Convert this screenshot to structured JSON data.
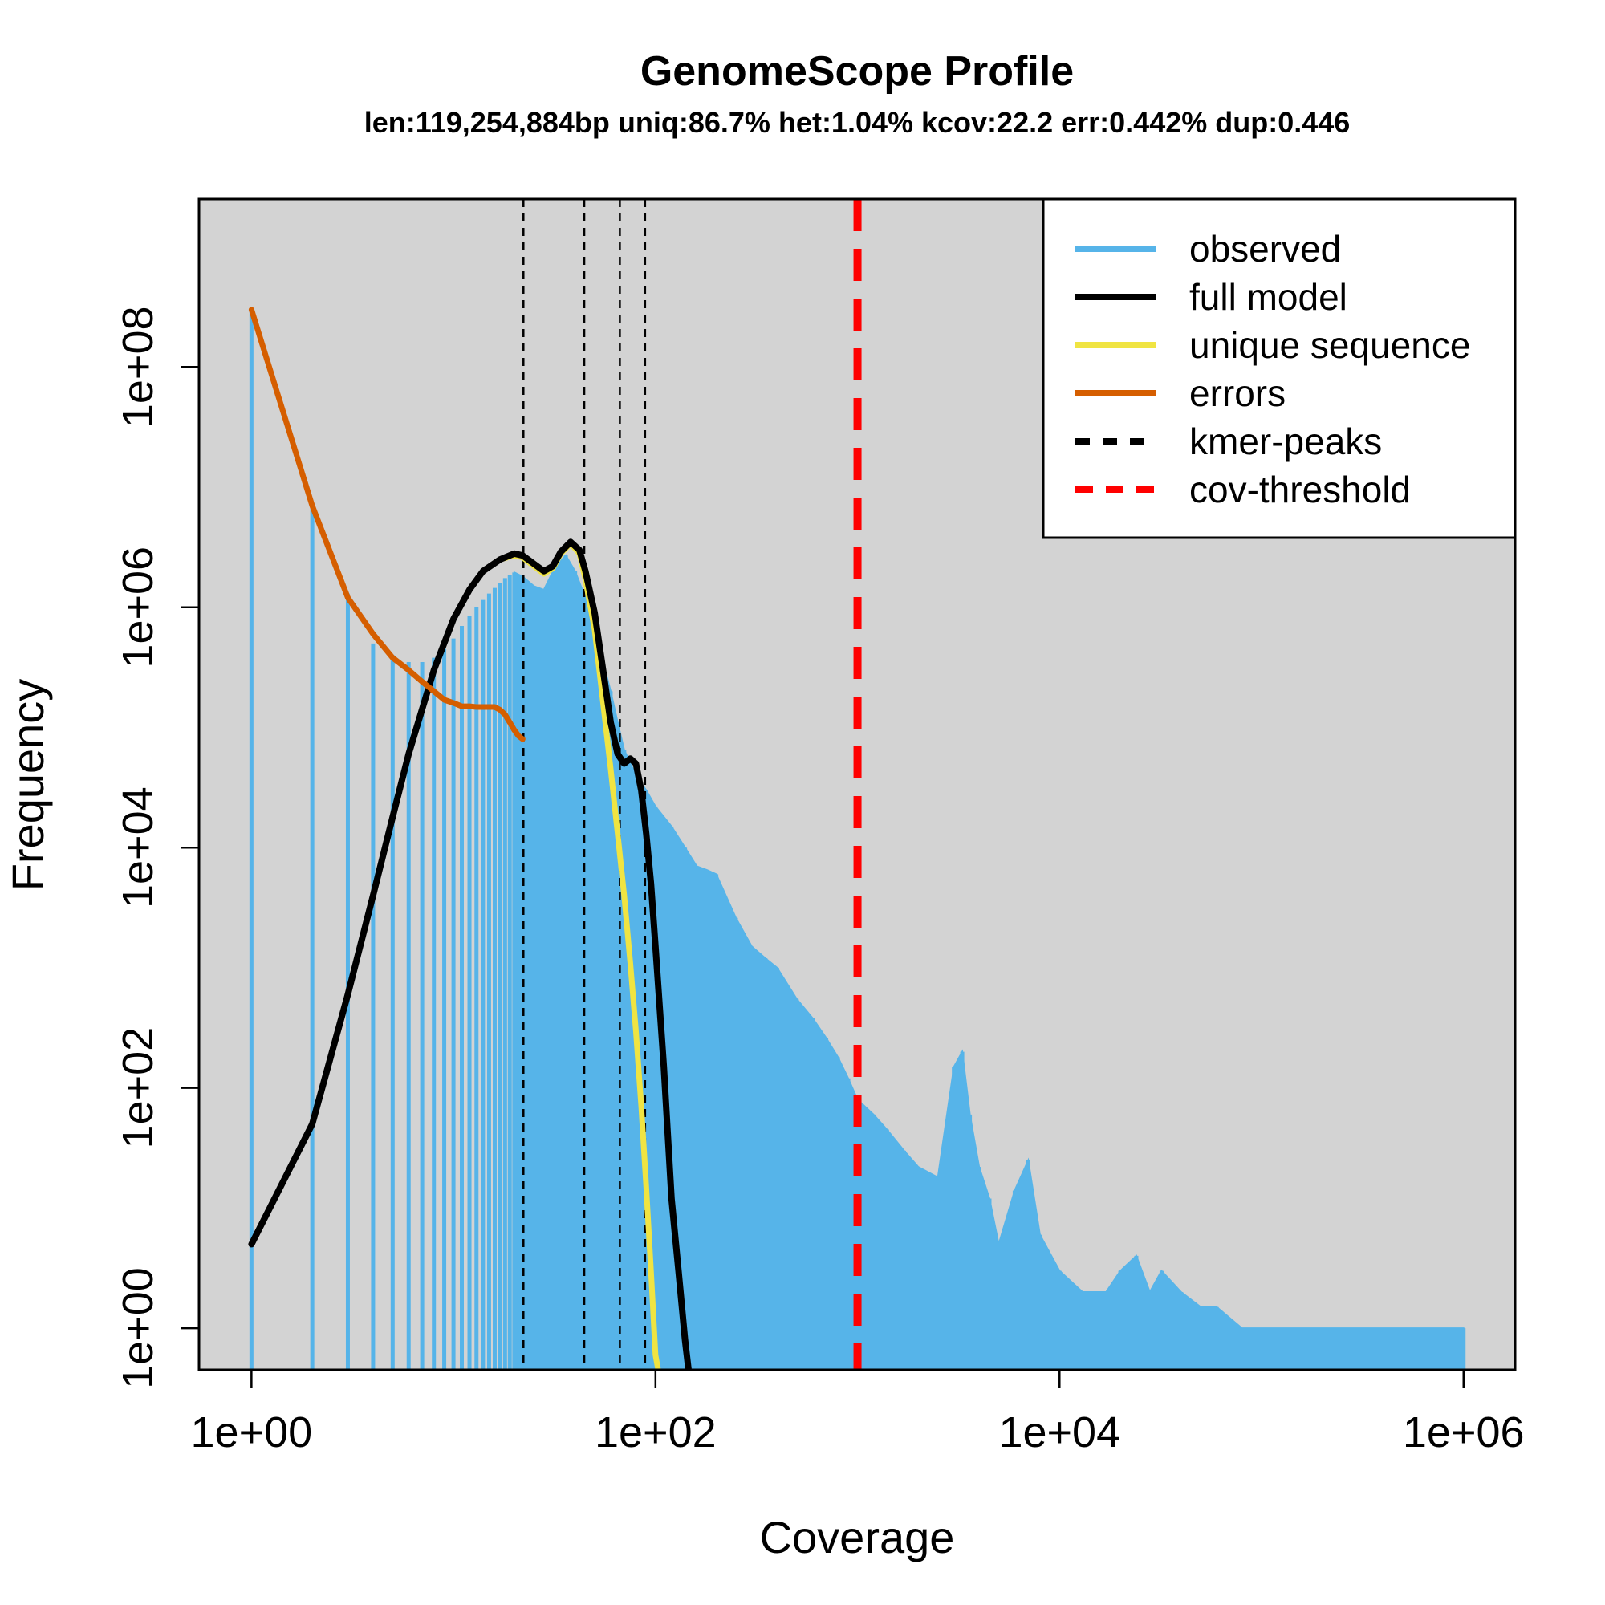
{
  "chart_data": {
    "type": "bar",
    "title": "GenomeScope Profile",
    "subtitle": "len:119,254,884bp uniq:86.7% het:1.04% kcov:22.2 err:0.442% dup:0.446",
    "xlabel": "Coverage",
    "ylabel": "Frequency",
    "x_scale": "log",
    "y_scale": "log",
    "xlim": [
      0.55,
      1800000
    ],
    "ylim": [
      0.45,
      2500000000
    ],
    "x_ticks": [
      "1e+00",
      "1e+02",
      "1e+04",
      "1e+06"
    ],
    "x_tick_values": [
      1,
      100,
      10000,
      1000000
    ],
    "y_ticks": [
      "1e+00",
      "1e+02",
      "1e+04",
      "1e+06",
      "1e+08"
    ],
    "y_tick_values": [
      1,
      100,
      10000,
      1000000,
      100000000
    ],
    "background": "#d3d3d3",
    "legend_position": "top-right",
    "legend": [
      {
        "label": "observed",
        "color": "#56B4E9",
        "style": "solid"
      },
      {
        "label": "full model",
        "color": "#000000",
        "style": "solid"
      },
      {
        "label": "unique sequence",
        "color": "#F0E442",
        "style": "solid"
      },
      {
        "label": "errors",
        "color": "#D55E00",
        "style": "solid"
      },
      {
        "label": "kmer-peaks",
        "color": "#000000",
        "style": "dashed"
      },
      {
        "label": "cov-threshold",
        "color": "#FF0000",
        "style": "dashed"
      }
    ],
    "series": [
      {
        "name": "observed",
        "color": "#56B4E9",
        "x": [
          1,
          2,
          3,
          4,
          5,
          6,
          7,
          8,
          9,
          10,
          11,
          12,
          13,
          14,
          15,
          16,
          17,
          18,
          19,
          20,
          22,
          25,
          28,
          32,
          36,
          40,
          45,
          50,
          55,
          60,
          65,
          70,
          80,
          90,
          100,
          120,
          140,
          160,
          180,
          200,
          250,
          300,
          350,
          400,
          500,
          600,
          700,
          800,
          900,
          1000,
          1200,
          1400,
          1700,
          2000,
          2500,
          3000,
          3300,
          3600,
          4000,
          4500,
          5000,
          6000,
          7000,
          8000,
          10000,
          13000,
          17000,
          20000,
          24000,
          28000,
          32000,
          40000,
          50000,
          60000,
          80000,
          100000,
          150000,
          200000,
          300000,
          500000,
          700000,
          1000000
        ],
        "y": [
          300000000,
          7000000,
          1300000,
          500000,
          400000,
          350000,
          350000,
          380000,
          450000,
          550000,
          700000,
          850000,
          1000000,
          1150000,
          1300000,
          1450000,
          1600000,
          1750000,
          1850000,
          1950000,
          1800000,
          1500000,
          1400000,
          2200000,
          2700000,
          2000000,
          1200000,
          600000,
          350000,
          200000,
          110000,
          65000,
          40000,
          30000,
          22000,
          15000,
          10000,
          7000,
          6500,
          6000,
          2600,
          1500,
          1200,
          1000,
          550,
          380,
          260,
          180,
          120,
          80,
          60,
          45,
          30,
          22,
          18,
          150,
          200,
          60,
          22,
          12,
          5,
          14,
          25,
          6,
          3,
          2,
          2,
          3,
          4,
          2,
          3,
          2,
          1.5,
          1.5,
          1,
          1,
          1,
          1,
          1,
          1,
          1,
          1
        ]
      },
      {
        "name": "full model",
        "color": "#000000",
        "x": [
          1,
          2,
          3,
          4,
          5,
          6,
          8,
          10,
          12,
          14,
          17,
          20,
          22,
          25,
          28,
          31,
          34,
          38,
          42,
          45,
          50,
          55,
          60,
          65,
          70,
          75,
          80,
          85,
          90,
          95,
          100,
          110,
          120,
          130,
          140,
          150,
          160,
          170
        ],
        "y": [
          5,
          50,
          600,
          4000,
          18000,
          60000,
          300000,
          800000,
          1400000,
          2000000,
          2500000,
          2800000,
          2700000,
          2300000,
          2000000,
          2200000,
          2900000,
          3500000,
          3000000,
          2000000,
          900000,
          300000,
          110000,
          60000,
          50000,
          55000,
          50000,
          30000,
          13000,
          5000,
          1500,
          150,
          12,
          3,
          0.8,
          0.3,
          0.2,
          0.2
        ]
      },
      {
        "name": "unique sequence",
        "color": "#F0E442",
        "x": [
          1,
          2,
          3,
          4,
          5,
          6,
          8,
          10,
          12,
          14,
          17,
          20,
          22,
          25,
          28,
          31,
          34,
          38,
          42,
          45,
          50,
          55,
          60,
          65,
          70,
          75,
          80,
          85,
          90,
          95,
          100,
          110
        ],
        "y": [
          5,
          50,
          600,
          4000,
          18000,
          60000,
          300000,
          800000,
          1400000,
          2000000,
          2500000,
          2700000,
          2600000,
          2200000,
          1900000,
          2100000,
          2800000,
          3400000,
          2800000,
          1700000,
          650000,
          160000,
          45000,
          13000,
          4000,
          1100,
          300,
          70,
          15,
          3,
          0.6,
          0.2
        ]
      },
      {
        "name": "errors",
        "color": "#D55E00",
        "x": [
          1,
          2,
          3,
          4,
          5,
          6,
          7,
          8,
          9,
          10,
          11,
          12,
          13,
          14,
          15,
          16,
          17,
          18,
          19,
          20,
          21,
          22
        ],
        "y": [
          300000000,
          7000000,
          1200000,
          600000,
          380000,
          300000,
          240000,
          200000,
          170000,
          160000,
          150000,
          150000,
          148000,
          148000,
          148000,
          148000,
          140000,
          128000,
          110000,
          95000,
          85000,
          80000
        ]
      }
    ],
    "kmer_peaks": [
      22.2,
      44.4,
      66.6,
      88.8
    ],
    "cov_threshold": 1000
  }
}
